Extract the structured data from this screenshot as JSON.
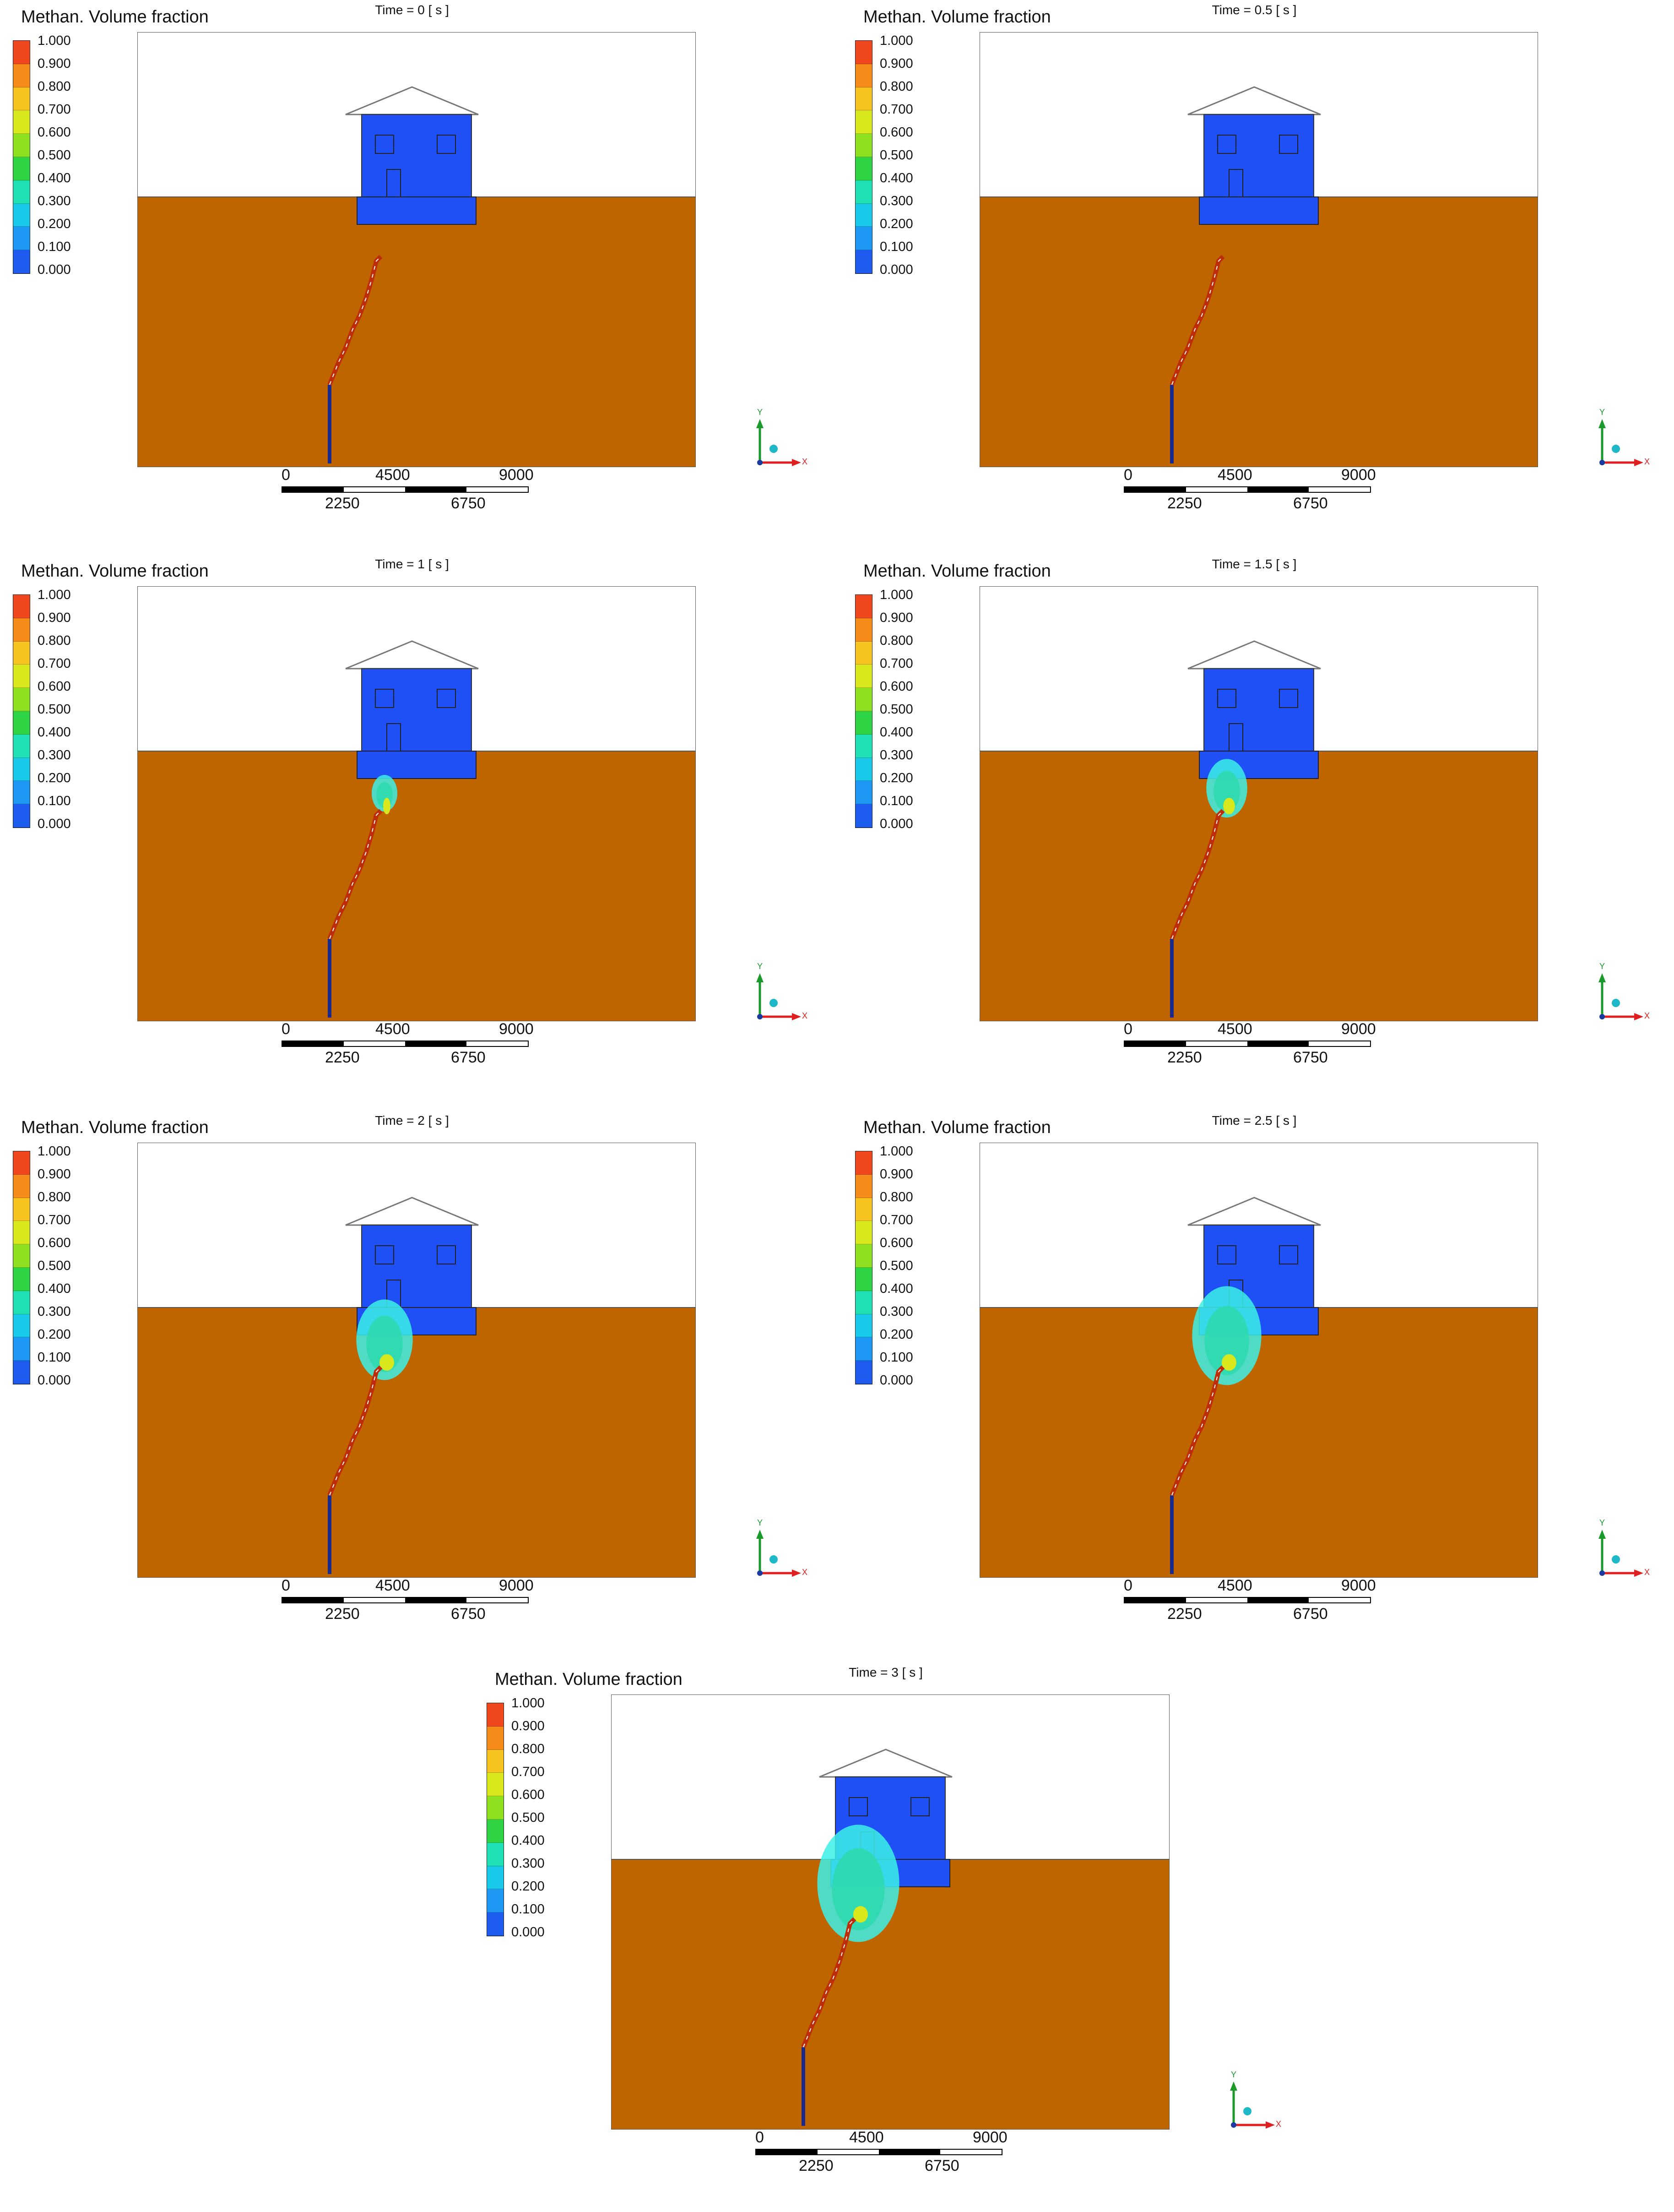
{
  "legend": {
    "title": "Methan. Volume fraction",
    "ticks": [
      "1.000",
      "0.900",
      "0.800",
      "0.700",
      "0.600",
      "0.500",
      "0.400",
      "0.300",
      "0.200",
      "0.100",
      "0.000"
    ],
    "colors": [
      "#f0471e",
      "#f58c1a",
      "#f7c31e",
      "#d9e81c",
      "#8fe021",
      "#2fd444",
      "#1fe0b5",
      "#19c9ea",
      "#1e98f5",
      "#1e5cf0"
    ]
  },
  "scale": {
    "top": [
      "0",
      "4500",
      "9000"
    ],
    "bottom": [
      "2250",
      "6750"
    ]
  },
  "axis_triad": {
    "y_label": "Y",
    "x_label": "X"
  },
  "colors": {
    "ground": "#be6500",
    "sky": "#ffffff",
    "house": "#1e50f5",
    "pipe": "#be2d0a",
    "accent_cyan": "#1fd8e8"
  },
  "panels": [
    {
      "time_label": "Time = 0 [ s ]",
      "plume": 0
    },
    {
      "time_label": "Time = 0.5 [ s ]",
      "plume": 0
    },
    {
      "time_label": "Time = 1 [ s ]",
      "plume": 1
    },
    {
      "time_label": "Time = 1.5 [ s ]",
      "plume": 2
    },
    {
      "time_label": "Time = 2 [ s ]",
      "plume": 3
    },
    {
      "time_label": "Time = 2.5 [ s ]",
      "plume": 4
    },
    {
      "time_label": "Time = 3 [ s ]",
      "plume": 5
    }
  ]
}
